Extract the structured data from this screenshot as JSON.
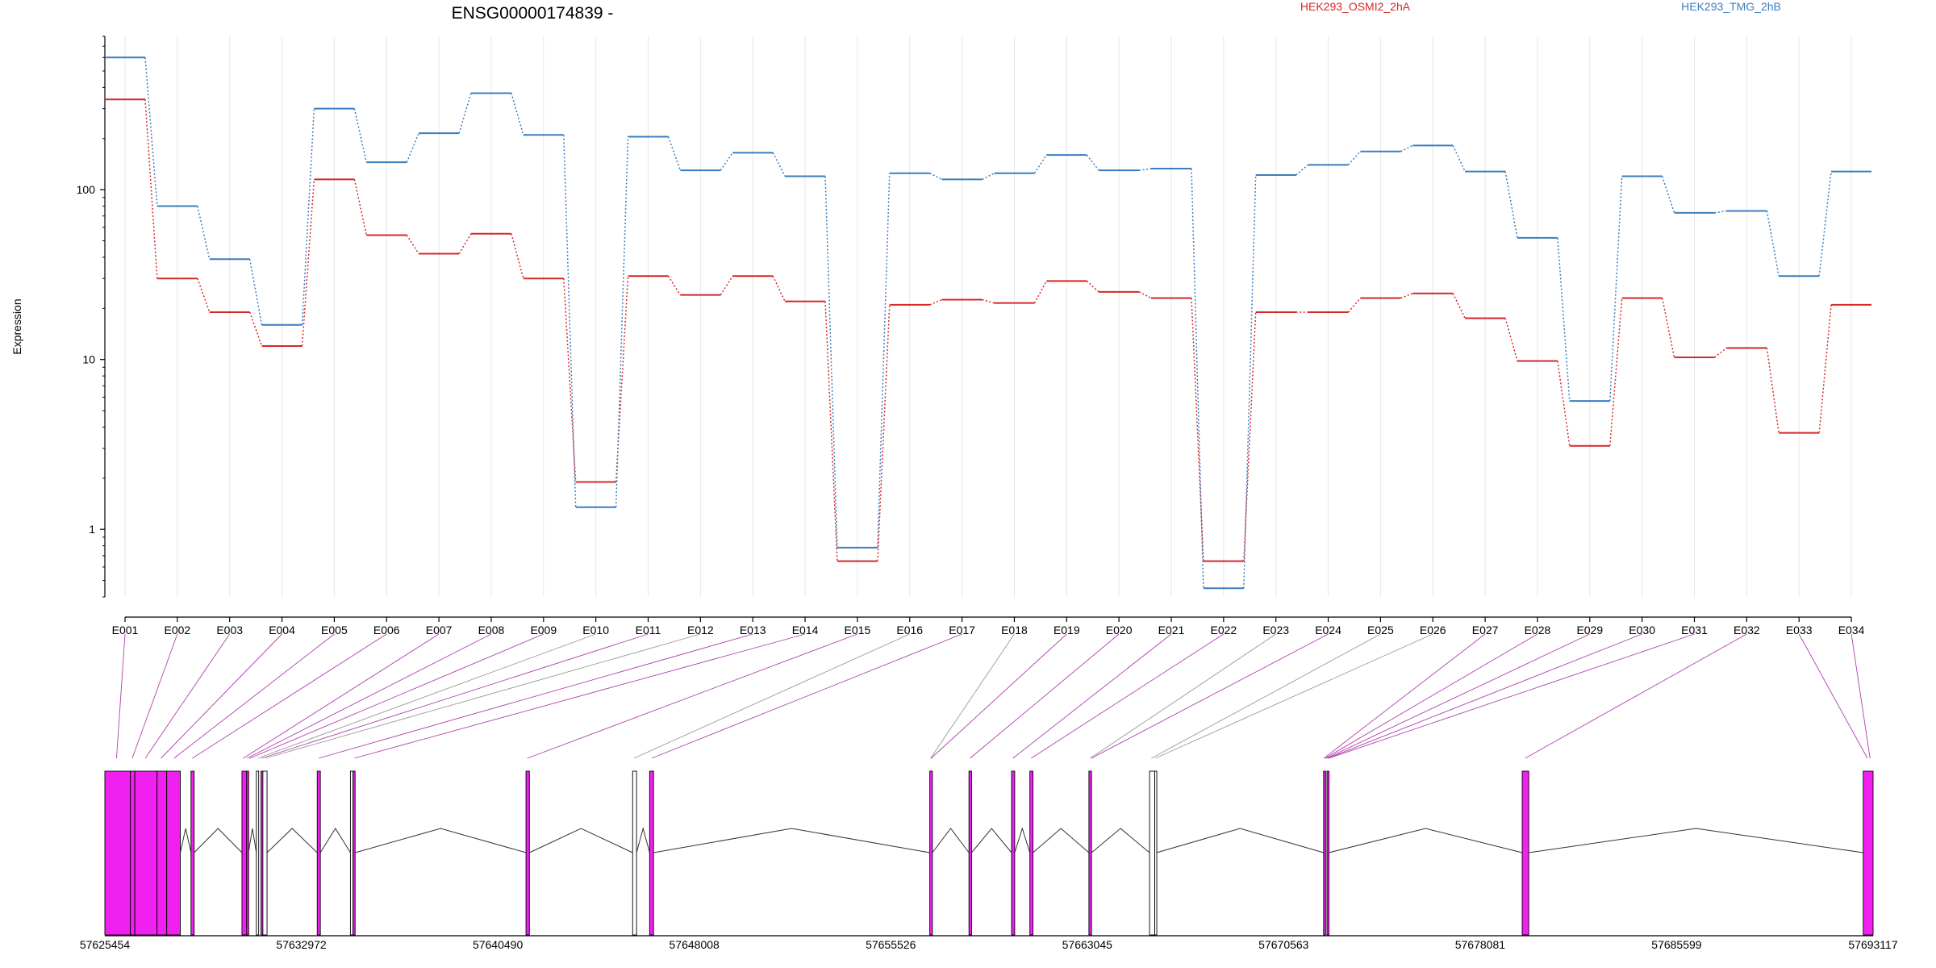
{
  "chart_data": {
    "type": "line",
    "title": "ENSG00000174839 -",
    "ylabel": "Expression",
    "yscale": "log",
    "ylim": [
      0.4,
      800
    ],
    "yticks": [
      "1",
      "10",
      "100"
    ],
    "grid": "vertical",
    "legend": "top-right",
    "categories": [
      "E001",
      "E002",
      "E003",
      "E004",
      "E005",
      "E006",
      "E007",
      "E008",
      "E009",
      "E010",
      "E011",
      "E012",
      "E013",
      "E014",
      "E015",
      "E016",
      "E017",
      "E018",
      "E019",
      "E020",
      "E021",
      "E022",
      "E023",
      "E024",
      "E025",
      "E026",
      "E027",
      "E028",
      "E029",
      "E030",
      "E031",
      "E032",
      "E033",
      "E034"
    ],
    "series": [
      {
        "name": "HEK293_OSMI2_2hA",
        "color": "#d62728",
        "values": [
          340,
          30,
          19,
          12,
          115,
          54,
          42,
          55,
          30,
          1.9,
          31,
          24,
          31,
          22,
          0.65,
          21,
          22.5,
          21.5,
          29,
          25,
          23,
          0.65,
          19,
          19,
          23,
          24.5,
          17.5,
          9.8,
          3.1,
          23,
          10.3,
          11.7,
          3.7,
          21
        ]
      },
      {
        "name": "HEK293_TMG_2hB",
        "color": "#3a7dc0",
        "values": [
          600,
          80,
          39,
          16,
          300,
          145,
          215,
          370,
          210,
          1.35,
          205,
          130,
          165,
          120,
          0.78,
          125,
          115,
          125,
          160,
          130,
          133,
          0.45,
          122,
          140,
          168,
          182,
          128,
          52,
          5.7,
          120,
          73,
          75,
          31,
          128
        ]
      }
    ],
    "genomic_axis": {
      "start": 57625454,
      "end": 57693117,
      "tick_labels": [
        "57625454",
        "57632972",
        "57640490",
        "57648008",
        "57655526",
        "57663045",
        "57670563",
        "57678081",
        "57685599",
        "57693117"
      ]
    },
    "exon_track": {
      "color_significant": "#f020f0",
      "color_normal": "#ffffff"
    }
  }
}
